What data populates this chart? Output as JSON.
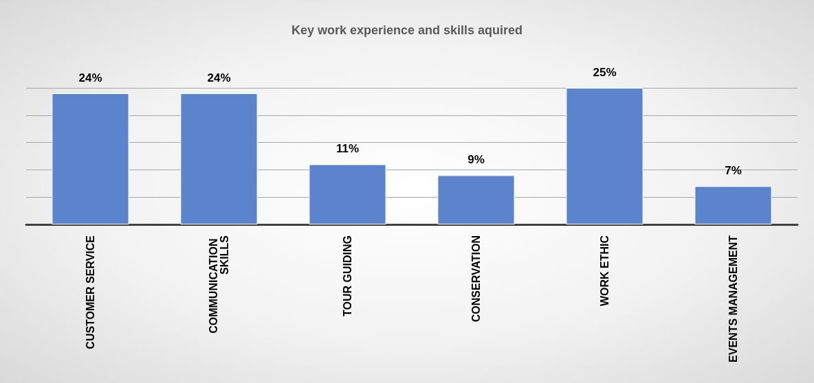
{
  "chart_data": {
    "type": "bar",
    "title": "Key work experience and skills aquired",
    "categories": [
      "CUSTOMER SERVICE",
      "COMMUNICATION SKILLS",
      "TOUR GUIDING",
      "CONSERVATION",
      "WORK ETHIC",
      "EVENTS MANAGEMENT"
    ],
    "values": [
      24,
      24,
      11,
      9,
      25,
      7
    ],
    "value_labels": [
      "24%",
      "24%",
      "11%",
      "9%",
      "25%",
      "7%"
    ],
    "color": "#5b84cc",
    "ylim": [
      0,
      25
    ],
    "yticks": [
      {
        "value": 0,
        "label": null
      },
      {
        "value": 5,
        "label": null
      },
      {
        "value": 10,
        "label": null
      },
      {
        "value": 15,
        "label": null
      },
      {
        "value": 20,
        "label": null
      },
      {
        "value": 25,
        "label": null
      }
    ],
    "grid": "y",
    "tick_labels": "x"
  }
}
